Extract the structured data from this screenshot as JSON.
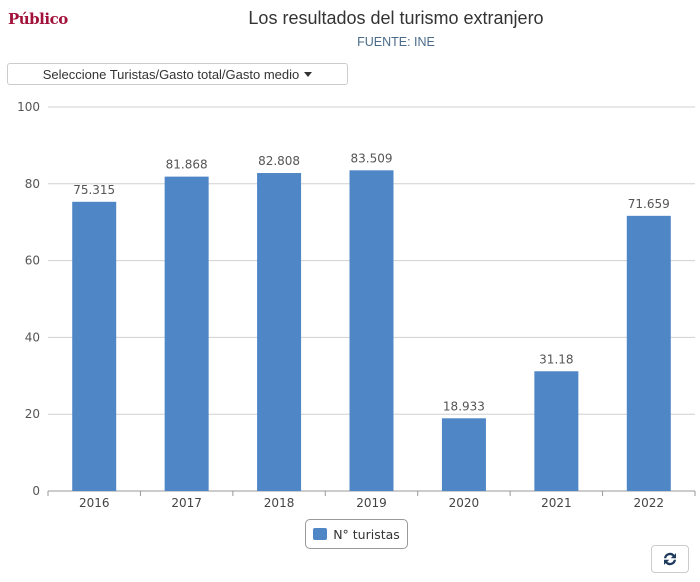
{
  "header": {
    "logo": "Público",
    "title": "Los resultados del turismo extranjero",
    "subtitle": "FUENTE: INE"
  },
  "selector": {
    "label": "Seleccione Turistas/Gasto total/Gasto medio"
  },
  "legend": {
    "label": "N° turistas"
  },
  "colors": {
    "bar": "#4f86c6",
    "grid": "#d0d0d0",
    "logo": "#a3123a"
  },
  "icons": {
    "refresh": "refresh-icon",
    "dropdown": "caret-down-icon"
  },
  "chart_data": {
    "type": "bar",
    "title": "Los resultados del turismo extranjero",
    "subtitle": "FUENTE: INE",
    "categories": [
      "2016",
      "2017",
      "2018",
      "2019",
      "2020",
      "2021",
      "2022"
    ],
    "series": [
      {
        "name": "N° turistas",
        "values": [
          75.315,
          81.868,
          82.808,
          83.509,
          18.933,
          31.18,
          71.659
        ]
      }
    ],
    "data_labels": [
      "75.315",
      "81.868",
      "82.808",
      "83.509",
      "18.933",
      "31.18",
      "71.659"
    ],
    "ylim": [
      0,
      100
    ],
    "yticks": [
      0,
      20,
      40,
      60,
      80,
      100
    ],
    "grid": true,
    "legend_position": "bottom"
  }
}
